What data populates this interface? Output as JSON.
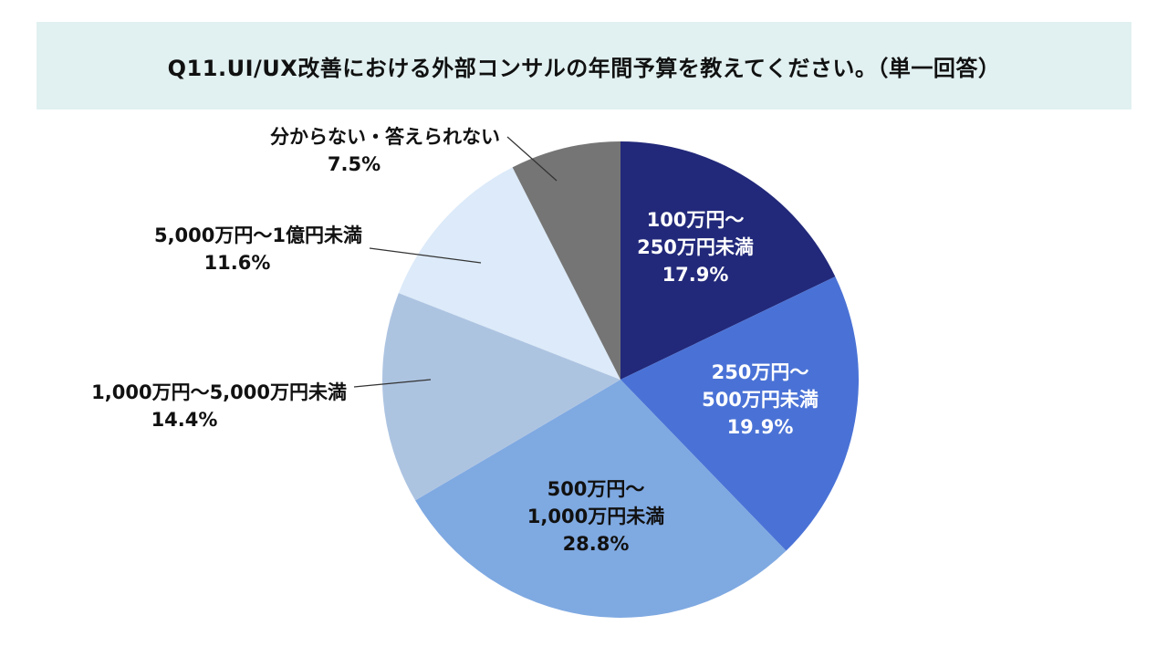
{
  "title": "Q11.UI/UX改善における外部コンサルの年間予算を教えてください。（単一回答）",
  "chart_data": {
    "type": "pie",
    "start_angle_deg": 0,
    "direction": "clockwise",
    "slices": [
      {
        "label_lines": [
          "100万円～",
          "250万円未満"
        ],
        "value": 17.9,
        "value_text": "17.9%",
        "color": "#22297a",
        "text_color": "#ffffff"
      },
      {
        "label_lines": [
          "250万円～",
          "500万円未満"
        ],
        "value": 19.9,
        "value_text": "19.9%",
        "color": "#4a72d6",
        "text_color": "#ffffff"
      },
      {
        "label_lines": [
          "500万円～",
          "1,000万円未満"
        ],
        "value": 28.8,
        "value_text": "28.8%",
        "color": "#7fa9e1",
        "text_color": "#111111"
      },
      {
        "label_lines": [
          "1,000万円～5,000万円未満"
        ],
        "value": 14.4,
        "value_text": "14.4%",
        "color": "#adc4e1",
        "text_color": "#111111"
      },
      {
        "label_lines": [
          "5,000万円～1億円未満"
        ],
        "value": 11.6,
        "value_text": "11.6%",
        "color": "#dceaf9",
        "text_color": "#111111"
      },
      {
        "label_lines": [
          "分からない・答えられない"
        ],
        "value": 7.5,
        "value_text": "7.5%",
        "color": "#757575",
        "text_color": "#111111"
      }
    ]
  }
}
